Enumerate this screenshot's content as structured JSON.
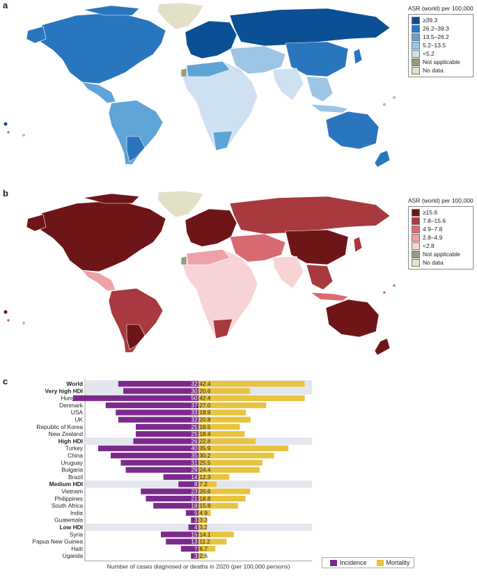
{
  "panels": {
    "a": {
      "letter": "a",
      "legend_title": "ASR (world) per 100,000",
      "legend": [
        {
          "label": "≥39.3",
          "color": "#0b4f94"
        },
        {
          "label": "26.2–39.3",
          "color": "#2a76be"
        },
        {
          "label": "13.5–26.2",
          "color": "#5ea4d6"
        },
        {
          "label": "5.2–13.5",
          "color": "#9dc5e6"
        },
        {
          "label": "<5.2",
          "color": "#cfe0f1"
        },
        {
          "label": "Not applicable",
          "color": "#999a7f"
        },
        {
          "label": "No data",
          "color": "#e3e0c8"
        }
      ]
    },
    "b": {
      "letter": "b",
      "legend_title": "ASR (world) per 100,000",
      "legend": [
        {
          "label": "≥15.6",
          "color": "#6e1518"
        },
        {
          "label": "7.8–15.6",
          "color": "#a8393e"
        },
        {
          "label": "4.9–7.8",
          "color": "#d96a73"
        },
        {
          "label": "2.8–4.9",
          "color": "#eea1a8"
        },
        {
          "label": "<2.8",
          "color": "#f8d3d6"
        },
        {
          "label": "Not applicable",
          "color": "#999a7f"
        },
        {
          "label": "No data",
          "color": "#e3e0c8"
        }
      ]
    },
    "c": {
      "letter": "c"
    }
  },
  "chart_data": {
    "type": "bar",
    "orientation": "horizontal-diverging",
    "categories": [
      "World",
      "Very high HDI",
      "Hungary",
      "Denmark",
      "USA",
      "UK",
      "Republic of Korea",
      "New Zealand",
      "High HDI",
      "Turkey",
      "China",
      "Uruguay",
      "Bulgaria",
      "Brazil",
      "Medium HDI",
      "Vietnam",
      "Philippines",
      "South Africa",
      "India",
      "Guatemala",
      "Low HDI",
      "Syria",
      "Papua New Guinea",
      "Haiti",
      "Uganda"
    ],
    "group_rows": [
      "World",
      "Very high HDI",
      "High HDI",
      "Medium HDI",
      "Low HDI"
    ],
    "series": [
      {
        "name": "Incidence",
        "color": "#7b2a8b",
        "values": [
          32,
          30,
          50,
          37,
          33,
          32,
          25,
          25,
          26,
          40,
          35,
          31,
          29,
          14,
          8,
          23,
          21,
          18,
          5,
          3,
          4,
          15,
          13,
          7,
          3
        ]
      },
      {
        "name": "Mortality",
        "color": "#e8c33e",
        "values": [
          42.4,
          20.6,
          42.4,
          27.0,
          18.9,
          20.8,
          16.5,
          18.4,
          22.8,
          35.9,
          30.2,
          25.5,
          24.4,
          12.3,
          7.2,
          20.6,
          18.8,
          15.8,
          4.9,
          3.3,
          3.2,
          14.1,
          11.2,
          6.7,
          2.6
        ]
      }
    ],
    "xlabel": "Number of cases diagnosed or deaths in 2020 (per 100,000 persons)",
    "legend_position": "bottom-right"
  }
}
